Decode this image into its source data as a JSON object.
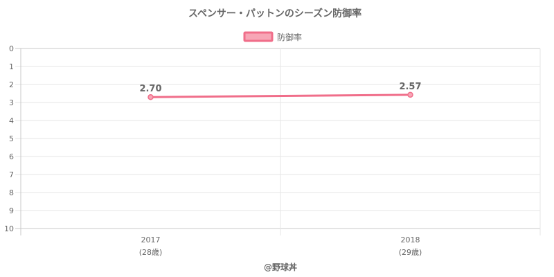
{
  "chart_data": {
    "type": "line",
    "title": "スペンサー・パットンのシーズン防御率",
    "x": [
      {
        "year": "2017",
        "age": "(28歳)"
      },
      {
        "year": "2018",
        "age": "(29歳)"
      }
    ],
    "series": [
      {
        "name": "防御率",
        "values": [
          2.7,
          2.57
        ],
        "labels": [
          "2.70",
          "2.57"
        ]
      }
    ],
    "ylim": [
      0,
      10
    ],
    "y_reversed": true,
    "y_ticks": [
      0,
      1,
      2,
      3,
      4,
      5,
      6,
      7,
      8,
      9,
      10
    ],
    "grid": true,
    "legend_position": "top",
    "line_color": "#f06e8a",
    "point_fill": "#f7a6b6",
    "credit": "@野球丼"
  }
}
